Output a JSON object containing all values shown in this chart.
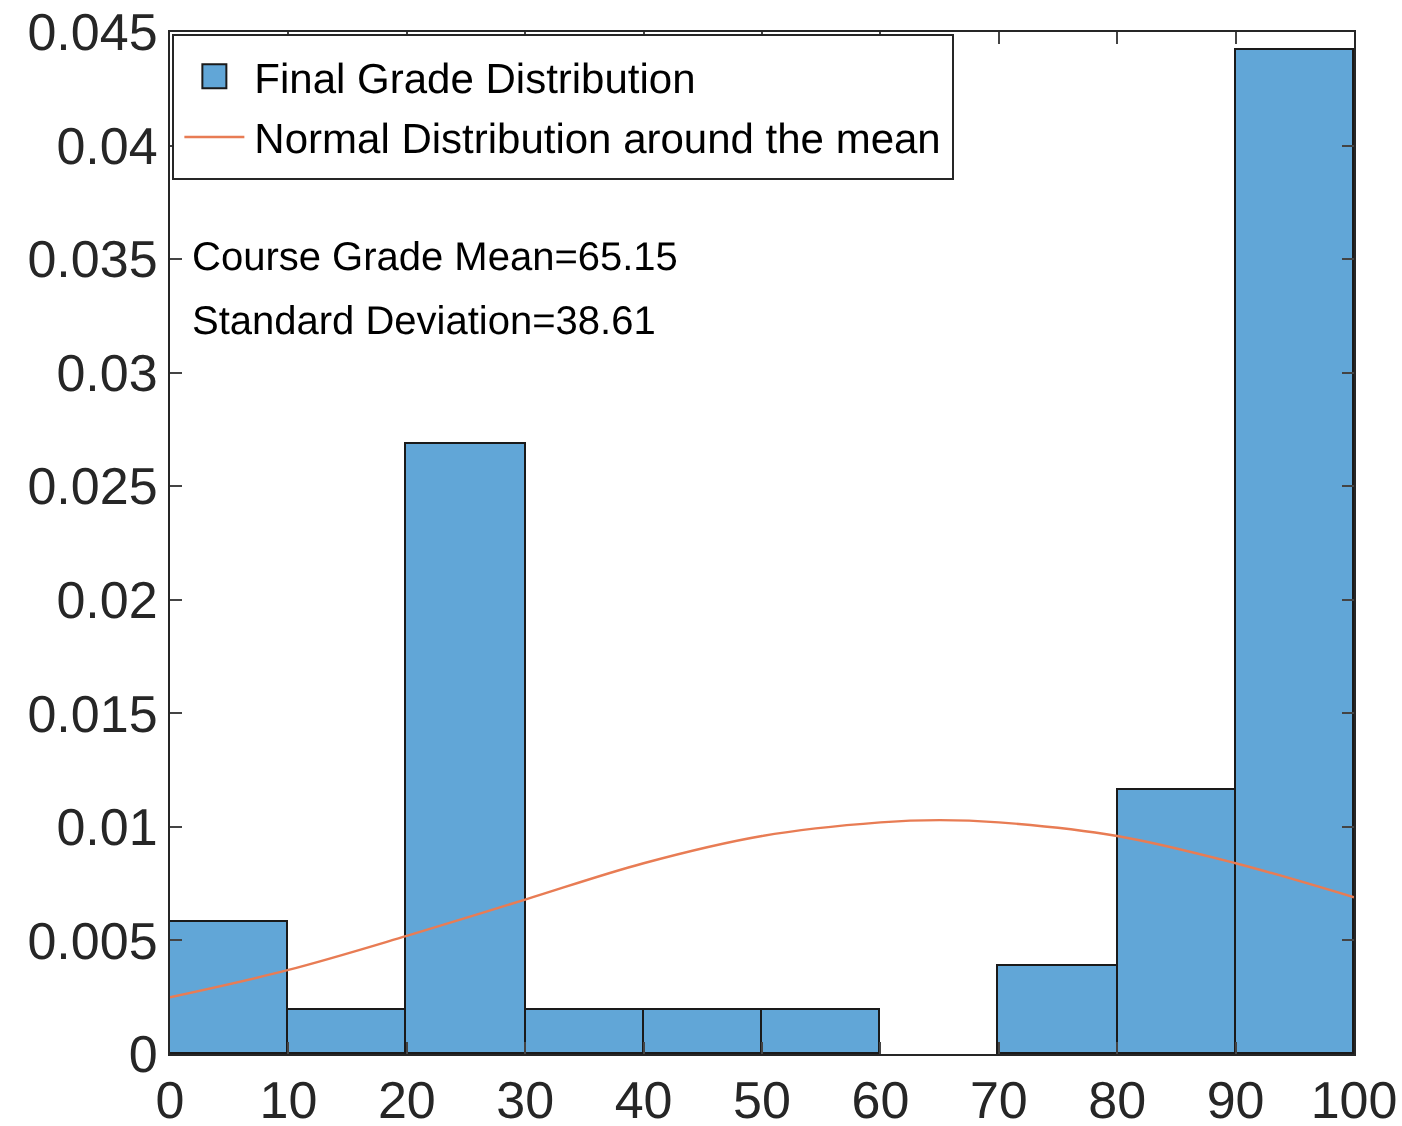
{
  "chart_data": {
    "type": "histogram",
    "series": [
      {
        "name": "Final Grade Distribution",
        "color": "#61a6d7",
        "bins": [
          0,
          10,
          20,
          30,
          40,
          50,
          60,
          70,
          80,
          90,
          100
        ],
        "values": [
          0.0058,
          0.0019,
          0.0269,
          0.0019,
          0.0019,
          0.0019,
          0,
          0.0039,
          0.0116,
          0.0442
        ]
      },
      {
        "type": "line",
        "name": "Normal Distribution around the mean",
        "color": "#e87c54",
        "x": [
          0,
          10,
          20,
          30,
          40,
          50,
          60,
          65,
          70,
          80,
          90,
          100
        ],
        "values": [
          0.0025,
          0.0037,
          0.0052,
          0.0068,
          0.0084,
          0.0096,
          0.0102,
          0.0103,
          0.0102,
          0.0096,
          0.0084,
          0.0069
        ]
      }
    ],
    "xlim": [
      0,
      100
    ],
    "xticks": [
      0,
      10,
      20,
      30,
      40,
      50,
      60,
      70,
      80,
      90,
      100
    ],
    "ylim": [
      0,
      0.045
    ],
    "yticks": [
      0,
      0.005,
      0.01,
      0.015,
      0.02,
      0.025,
      0.03,
      0.035,
      0.04,
      0.045
    ],
    "annotations": [
      "Course Grade Mean=65.15",
      "Standard Deviation=38.61"
    ],
    "legend": "top left",
    "marker": "none",
    "line_style": "solid"
  }
}
